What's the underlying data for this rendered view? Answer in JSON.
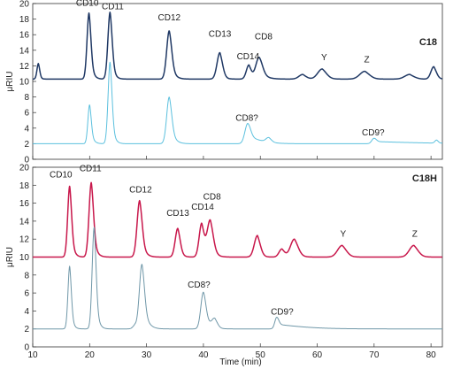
{
  "chart_data": [
    {
      "type": "line",
      "panel_title": "C18",
      "ylabel": "μRIU",
      "xlabel": "Time (min)",
      "xlim": [
        10,
        82
      ],
      "ylim": [
        0,
        20
      ],
      "y_ticks": [
        "0",
        "2",
        "4",
        "6",
        "8",
        "10",
        "12",
        "14",
        "16",
        "18",
        "20"
      ],
      "x_tick_marks": [
        10,
        20,
        30,
        40,
        50,
        60,
        70,
        80
      ],
      "x_tick_labels_shown": false,
      "series": [
        {
          "color": "#1f3864",
          "baseline": 10.3,
          "peaks": [
            {
              "label": "",
              "t": 11.0,
              "h": 2.0,
              "sigma": 0.25,
              "tail": 0.3
            },
            {
              "label": "CD10",
              "t": 19.9,
              "h": 8.5,
              "sigma": 0.35,
              "tail": 0.6
            },
            {
              "label": "CD11",
              "t": 23.6,
              "h": 8.6,
              "sigma": 0.38,
              "tail": 0.6
            },
            {
              "label": "CD12",
              "t": 34.0,
              "h": 6.2,
              "sigma": 0.45,
              "tail": 0.8
            },
            {
              "label": "CD13",
              "t": 42.9,
              "h": 3.4,
              "sigma": 0.5,
              "tail": 0.6
            },
            {
              "label": "CD14",
              "t": 48.0,
              "h": 1.8,
              "sigma": 0.45,
              "tail": 0.4
            },
            {
              "label": "CD8",
              "t": 49.8,
              "h": 2.8,
              "sigma": 0.6,
              "tail": 1.2
            },
            {
              "label": "",
              "t": 57.5,
              "h": 0.6,
              "sigma": 0.7,
              "tail": 0.4
            },
            {
              "label": "Y",
              "t": 60.9,
              "h": 1.3,
              "sigma": 0.8,
              "tail": 0.8
            },
            {
              "label": "Z",
              "t": 68.4,
              "h": 1.0,
              "sigma": 0.9,
              "tail": 0.8
            },
            {
              "label": "",
              "t": 76.3,
              "h": 0.6,
              "sigma": 0.9,
              "tail": 0.5
            },
            {
              "label": "",
              "t": 80.5,
              "h": 1.6,
              "sigma": 0.5,
              "tail": 0.5
            }
          ]
        },
        {
          "color": "#5bc0de",
          "baseline": 2.0,
          "peaks": [
            {
              "label": "",
              "t": 20.0,
              "h": 5.0,
              "sigma": 0.3,
              "tail": 0.6
            },
            {
              "label": "",
              "t": 23.6,
              "h": 10.5,
              "sigma": 0.35,
              "tail": 0.6
            },
            {
              "label": "",
              "t": 34.0,
              "h": 6.0,
              "sigma": 0.45,
              "tail": 0.9
            },
            {
              "label": "CD8?",
              "t": 47.8,
              "h": 2.6,
              "sigma": 0.5,
              "tail": 3.0
            },
            {
              "label": "",
              "t": 51.5,
              "h": 0.6,
              "sigma": 0.5,
              "tail": 0.5
            },
            {
              "label": "CD9?",
              "t": 70.0,
              "h": 0.7,
              "sigma": 0.4,
              "tail": 12.0
            },
            {
              "label": "",
              "t": 81.0,
              "h": 0.4,
              "sigma": 0.3,
              "tail": 0.3
            }
          ]
        }
      ]
    },
    {
      "type": "line",
      "panel_title": "C18H",
      "ylabel": "μRIU",
      "xlabel": "Time (min)",
      "xlim": [
        10,
        82
      ],
      "ylim": [
        0,
        20
      ],
      "y_ticks": [
        "0",
        "2",
        "4",
        "6",
        "8",
        "10",
        "12",
        "14",
        "16",
        "18",
        "20"
      ],
      "x_tick_labels": [
        "10",
        "20",
        "30",
        "40",
        "50",
        "60",
        "70",
        "80"
      ],
      "x_tick_values": [
        10,
        20,
        30,
        40,
        50,
        60,
        70,
        80
      ],
      "series": [
        {
          "color": "#c8174b",
          "baseline": 10.0,
          "peaks": [
            {
              "label": "CD10",
              "t": 16.5,
              "h": 7.9,
              "sigma": 0.35,
              "tail": 0.6
            },
            {
              "label": "CD11",
              "t": 20.3,
              "h": 8.3,
              "sigma": 0.4,
              "tail": 0.7
            },
            {
              "label": "CD12",
              "t": 28.8,
              "h": 6.3,
              "sigma": 0.45,
              "tail": 0.8
            },
            {
              "label": "CD13",
              "t": 35.5,
              "h": 3.2,
              "sigma": 0.45,
              "tail": 0.6
            },
            {
              "label": "CD14",
              "t": 39.7,
              "h": 3.7,
              "sigma": 0.45,
              "tail": 0.5
            },
            {
              "label": "CD8",
              "t": 41.2,
              "h": 4.1,
              "sigma": 0.55,
              "tail": 0.8
            },
            {
              "label": "",
              "t": 49.5,
              "h": 2.4,
              "sigma": 0.55,
              "tail": 0.6
            },
            {
              "label": "",
              "t": 53.8,
              "h": 0.9,
              "sigma": 0.5,
              "tail": 0.5
            },
            {
              "label": "",
              "t": 56.0,
              "h": 2.0,
              "sigma": 0.7,
              "tail": 0.8
            },
            {
              "label": "Y",
              "t": 64.4,
              "h": 1.3,
              "sigma": 0.8,
              "tail": 0.8
            },
            {
              "label": "Z",
              "t": 77.0,
              "h": 1.3,
              "sigma": 0.8,
              "tail": 0.8
            }
          ]
        },
        {
          "color": "#6f97a8",
          "baseline": 2.0,
          "peaks": [
            {
              "label": "",
              "t": 16.5,
              "h": 7.0,
              "sigma": 0.3,
              "tail": 0.5
            },
            {
              "label": "",
              "t": 20.8,
              "h": 11.3,
              "sigma": 0.35,
              "tail": 0.6
            },
            {
              "label": "",
              "t": 28.0,
              "h": 0.4,
              "sigma": 0.4,
              "tail": 0.3
            },
            {
              "label": "",
              "t": 29.2,
              "h": 7.2,
              "sigma": 0.45,
              "tail": 1.0
            },
            {
              "label": "CD8?",
              "t": 40.0,
              "h": 4.1,
              "sigma": 0.45,
              "tail": 1.2
            },
            {
              "label": "",
              "t": 42.0,
              "h": 1.0,
              "sigma": 0.5,
              "tail": 0.5
            },
            {
              "label": "CD9?",
              "t": 52.9,
              "h": 1.3,
              "sigma": 0.35,
              "tail": 7.0
            }
          ]
        }
      ]
    }
  ]
}
